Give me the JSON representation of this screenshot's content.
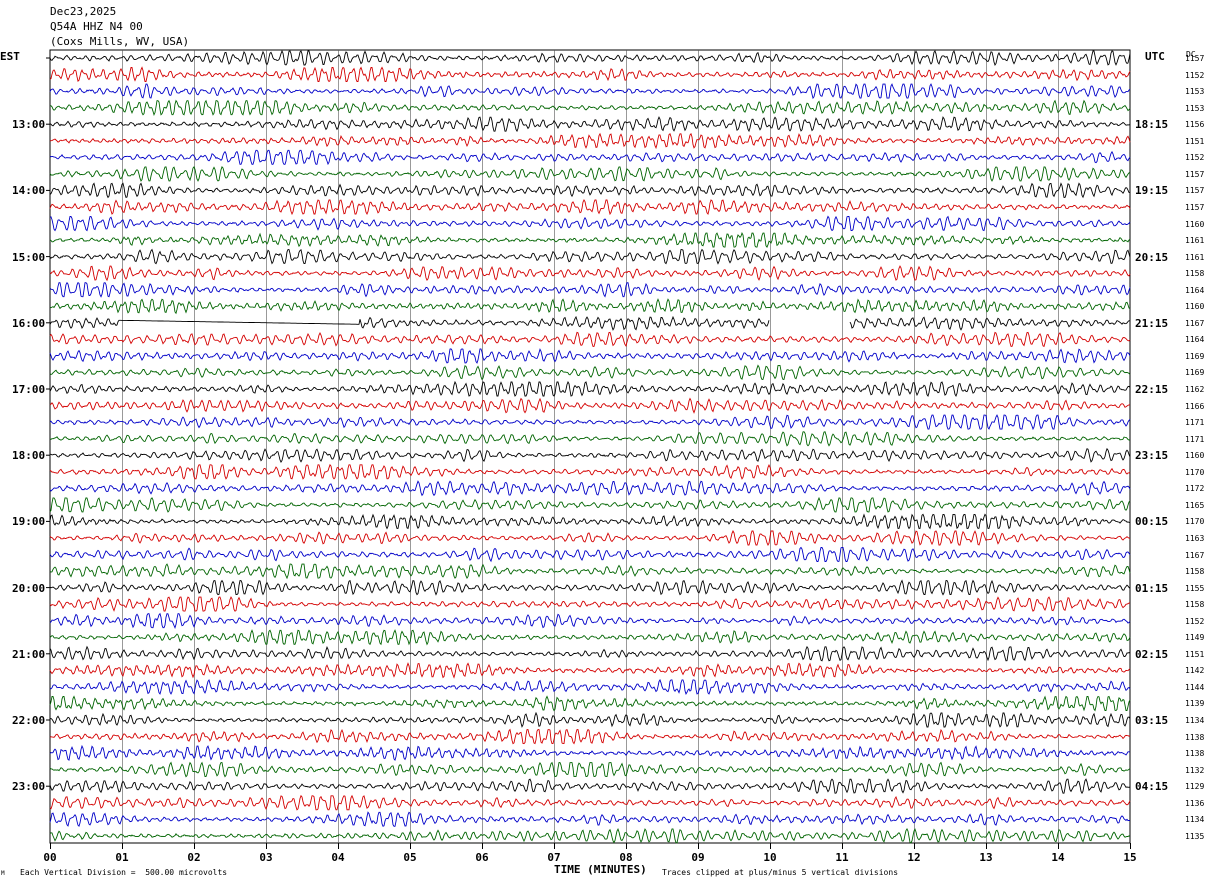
{
  "header": {
    "date": "Dec23,2025",
    "station": "Q54A HHZ N4 00",
    "location": "(Coxs Mills, WV, USA)"
  },
  "left_tz": "EST",
  "right_tz": "UTC",
  "count_header": "DC",
  "xlabel": "TIME (MINUTES)",
  "footer_left": "Each Vertical Division =  500.00 microvolts",
  "footer_right": "Traces clipped at plus/minus 5 vertical divisions",
  "footer_mark": "M",
  "colors": {
    "trace_cycle": [
      "#000000",
      "#d40000",
      "#0000c8",
      "#006400"
    ],
    "grid": "#000000"
  },
  "chart_data": {
    "type": "line",
    "x_ticks": [
      "00",
      "01",
      "02",
      "03",
      "04",
      "05",
      "06",
      "07",
      "08",
      "09",
      "10",
      "11",
      "12",
      "13",
      "14",
      "15"
    ],
    "xlim": [
      0,
      15
    ],
    "left_hour_labels": [
      "13:00",
      "14:00",
      "15:00",
      "16:00",
      "17:00",
      "18:00",
      "19:00",
      "20:00",
      "21:00",
      "22:00",
      "23:00"
    ],
    "right_hour_labels": [
      "18:15",
      "19:15",
      "20:15",
      "21:15",
      "22:15",
      "23:15",
      "00:15",
      "01:15",
      "02:15",
      "03:15",
      "04:15"
    ],
    "row_counts": [
      "1157",
      "1152",
      "1153",
      "1153",
      "1156",
      "1151",
      "1152",
      "1157",
      "1157",
      "1157",
      "1160",
      "1161",
      "1161",
      "1158",
      "1164",
      "1160",
      "1167",
      "1164",
      "1169",
      "1169",
      "1162",
      "1166",
      "1171",
      "1171",
      "1160",
      "1170",
      "1172",
      "1165",
      "1170",
      "1163",
      "1167",
      "1158",
      "1155",
      "1158",
      "1152",
      "1149",
      "1151",
      "1142",
      "1144",
      "1139",
      "1134",
      "1138",
      "1138",
      "1132",
      "1129",
      "1136",
      "1134",
      "1135"
    ],
    "gaps": [
      {
        "row": 16,
        "x_start": 0.95,
        "x_end": 4.3,
        "kind": "flat"
      },
      {
        "row": 16,
        "x_start": 10.0,
        "x_end": 11.1,
        "kind": "missing"
      }
    ]
  }
}
